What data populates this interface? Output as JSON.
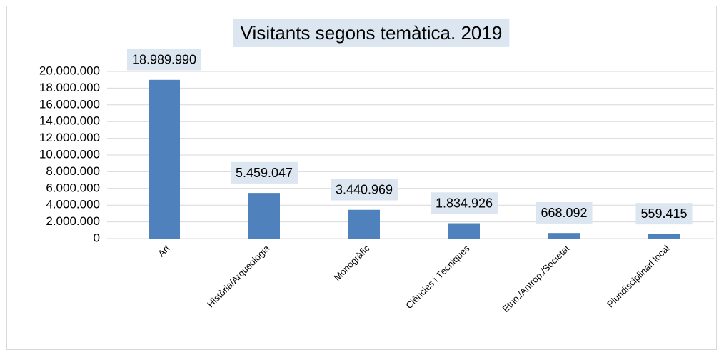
{
  "chart_data": {
    "type": "bar",
    "title": "Visitants segons temàtica. 2019",
    "categories": [
      "Art",
      "Història/Arqueologia",
      "Monogràfic",
      "Ciències i Tècniques",
      "Etno./Antrop./Societat",
      "Pluridisciplinari local"
    ],
    "values": [
      18989990,
      5459047,
      3440969,
      1834926,
      668092,
      559415
    ],
    "value_labels": [
      "18.989.990",
      "5.459.047",
      "3.440.969",
      "1.834.926",
      "668.092",
      "559.415"
    ],
    "color": "#4f81bd",
    "ylim": [
      0,
      20000000
    ],
    "yticks": [
      0,
      {
        "value": 2000000,
        "label": "2.000.000"
      },
      {
        "value": 4000000,
        "label": "4.000.000"
      },
      {
        "value": 6000000,
        "label": "6.000.000"
      },
      {
        "value": 8000000,
        "label": "8.000.000"
      },
      {
        "value": 10000000,
        "label": "10.000.000"
      },
      {
        "value": 12000000,
        "label": "12.000.000"
      },
      {
        "value": 14000000,
        "label": "14.000.000"
      },
      {
        "value": 16000000,
        "label": "16.000.000"
      },
      {
        "value": 18000000,
        "label": "18.000.000"
      },
      {
        "value": 20000000,
        "label": "20.000.000"
      }
    ],
    "grid": true
  }
}
